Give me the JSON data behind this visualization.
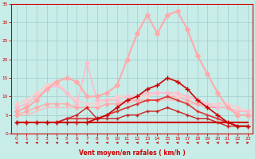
{
  "xlabel": "Vent moyen/en rafales ( km/h )",
  "xlim": [
    -0.5,
    23.5
  ],
  "ylim": [
    0,
    35
  ],
  "xticks": [
    0,
    1,
    2,
    3,
    4,
    5,
    6,
    7,
    8,
    9,
    10,
    11,
    12,
    13,
    14,
    15,
    16,
    17,
    18,
    19,
    20,
    21,
    22,
    23
  ],
  "yticks": [
    0,
    5,
    10,
    15,
    20,
    25,
    30,
    35
  ],
  "bg_color": "#c8ece8",
  "grid_color": "#a0cccc",
  "series": [
    {
      "x": [
        0,
        1,
        2,
        3,
        4,
        5,
        6,
        7,
        8,
        9,
        10,
        11,
        12,
        13,
        14,
        15,
        16,
        17,
        18,
        19,
        20,
        21,
        22,
        23
      ],
      "y": [
        3,
        3,
        3,
        3,
        3,
        3,
        3,
        3,
        3,
        3,
        3,
        3,
        3,
        3,
        3,
        3,
        3,
        3,
        3,
        3,
        3,
        3,
        3,
        3
      ],
      "color": "#cc0000",
      "lw": 1.5,
      "marker": null,
      "ms": 0,
      "zorder": 5
    },
    {
      "x": [
        0,
        1,
        2,
        3,
        4,
        5,
        6,
        7,
        8,
        9,
        10,
        11,
        12,
        13,
        14,
        15,
        16,
        17,
        18,
        19,
        20,
        21,
        22,
        23
      ],
      "y": [
        3,
        3,
        3,
        3,
        3,
        3,
        3,
        3,
        4,
        5,
        7,
        9,
        10,
        12,
        13,
        15,
        14,
        12,
        9,
        7,
        5,
        3,
        2,
        2
      ],
      "color": "#cc0000",
      "lw": 1.2,
      "marker": "+",
      "ms": 4,
      "zorder": 5
    },
    {
      "x": [
        0,
        1,
        2,
        3,
        4,
        5,
        6,
        7,
        8,
        9,
        10,
        11,
        12,
        13,
        14,
        15,
        16,
        17,
        18,
        19,
        20,
        21,
        22,
        23
      ],
      "y": [
        3,
        3,
        3,
        3,
        3,
        4,
        4,
        4,
        4,
        5,
        6,
        7,
        8,
        9,
        9,
        10,
        9,
        8,
        6,
        5,
        4,
        3,
        2,
        2
      ],
      "color": "#dd3333",
      "lw": 1.2,
      "marker": "+",
      "ms": 3,
      "zorder": 4
    },
    {
      "x": [
        0,
        1,
        2,
        3,
        4,
        5,
        6,
        7,
        8,
        9,
        10,
        11,
        12,
        13,
        14,
        15,
        16,
        17,
        18,
        19,
        20,
        21,
        22,
        23
      ],
      "y": [
        3,
        3,
        3,
        3,
        3,
        4,
        5,
        7,
        4,
        4,
        4,
        5,
        5,
        6,
        6,
        7,
        6,
        5,
        4,
        4,
        3,
        2,
        2,
        2
      ],
      "color": "#cc2222",
      "lw": 1.0,
      "marker": "+",
      "ms": 3,
      "zorder": 4
    },
    {
      "x": [
        0,
        1,
        2,
        3,
        4,
        5,
        6,
        7,
        8,
        9,
        10,
        11,
        12,
        13,
        14,
        15,
        16,
        17,
        18,
        19,
        20,
        21,
        22,
        23
      ],
      "y": [
        5,
        5,
        6,
        7,
        7,
        7,
        7,
        7,
        7,
        8,
        8,
        8,
        9,
        9,
        9,
        9,
        9,
        8,
        8,
        7,
        7,
        7,
        6,
        6
      ],
      "color": "#ffbbbb",
      "lw": 1.0,
      "marker": null,
      "ms": 0,
      "zorder": 2
    },
    {
      "x": [
        0,
        1,
        2,
        3,
        4,
        5,
        6,
        7,
        8,
        9,
        10,
        11,
        12,
        13,
        14,
        15,
        16,
        17,
        18,
        19,
        20,
        21,
        22,
        23
      ],
      "y": [
        5,
        6,
        7,
        8,
        8,
        8,
        7,
        7,
        7,
        8,
        8,
        9,
        9,
        9,
        9,
        10,
        10,
        9,
        8,
        7,
        7,
        7,
        6,
        6
      ],
      "color": "#ffaaaa",
      "lw": 1.0,
      "marker": "D",
      "ms": 2.5,
      "zorder": 2
    },
    {
      "x": [
        0,
        1,
        2,
        3,
        4,
        5,
        6,
        7,
        8,
        9,
        10,
        11,
        12,
        13,
        14,
        15,
        16,
        17,
        18,
        19,
        20,
        21,
        22,
        23
      ],
      "y": [
        8,
        9,
        11,
        13,
        14,
        11,
        9,
        8,
        8,
        9,
        10,
        10,
        10,
        10,
        11,
        11,
        10,
        10,
        9,
        8,
        8,
        8,
        7,
        6
      ],
      "color": "#ffcccc",
      "lw": 1.2,
      "marker": "D",
      "ms": 2.5,
      "zorder": 2
    },
    {
      "x": [
        0,
        1,
        2,
        3,
        4,
        5,
        6,
        7,
        8,
        9,
        10,
        11,
        12,
        13,
        14,
        15,
        16,
        17,
        18,
        19,
        20,
        21,
        22,
        23
      ],
      "y": [
        6,
        7,
        9,
        12,
        14,
        15,
        14,
        10,
        10,
        11,
        13,
        20,
        27,
        32,
        27,
        32,
        33,
        28,
        21,
        16,
        11,
        7,
        5,
        5
      ],
      "color": "#ffaaaa",
      "lw": 1.5,
      "marker": "D",
      "ms": 3,
      "zorder": 3
    },
    {
      "x": [
        0,
        1,
        2,
        3,
        4,
        5,
        6,
        7,
        8,
        9,
        10,
        11,
        12,
        13,
        14,
        15,
        16,
        17,
        18,
        19,
        20,
        21,
        22,
        23
      ],
      "y": [
        7,
        8,
        10,
        12,
        13,
        11,
        8,
        19,
        9,
        9,
        9,
        10,
        10,
        11,
        11,
        11,
        11,
        10,
        9,
        8,
        7,
        7,
        6,
        6
      ],
      "color": "#ffbbcc",
      "lw": 1.2,
      "marker": "D",
      "ms": 2.5,
      "zorder": 2
    }
  ],
  "arrows": {
    "color": "#cc0000",
    "directions": [
      "left",
      "left",
      "left",
      "left",
      "left",
      "left",
      "left",
      "left",
      "left",
      "left",
      "left",
      "left",
      "left",
      "left",
      "left",
      "left",
      "left",
      "left",
      "left",
      "left",
      "left",
      "right",
      "right",
      "right"
    ]
  },
  "tick_color": "#cc0000",
  "label_color": "#cc0000",
  "axis_color": "#cc0000"
}
